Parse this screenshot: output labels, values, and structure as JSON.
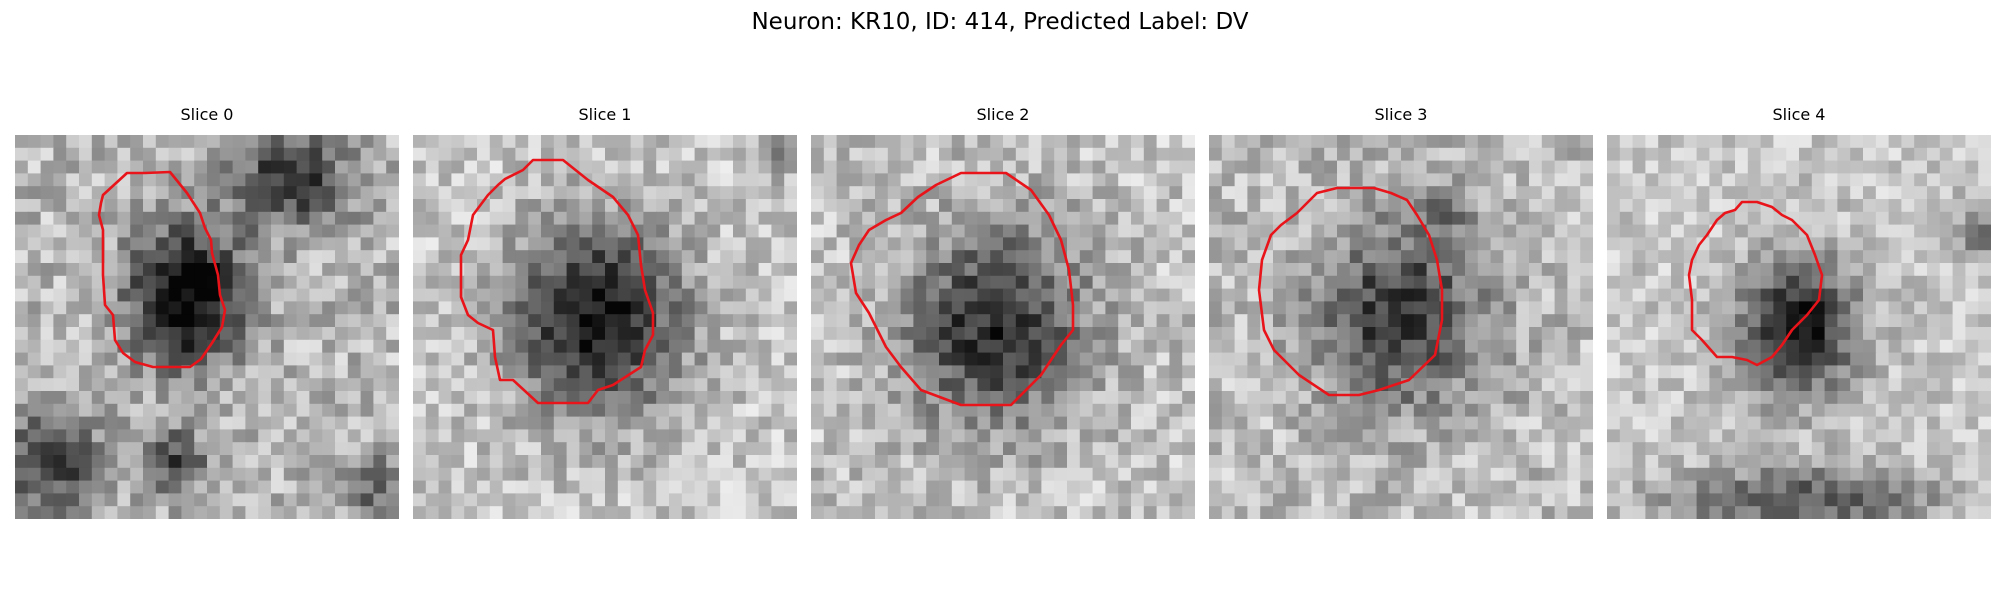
{
  "figure": {
    "title": "Neuron: KR10, ID: 414, Predicted Label: DV"
  },
  "colors": {
    "contour": "#e8141a",
    "background": "#ffffff"
  },
  "panels": [
    {
      "title": "Slice 0"
    },
    {
      "title": "Slice 1"
    },
    {
      "title": "Slice 2"
    },
    {
      "title": "Slice 3"
    },
    {
      "title": "Slice 4"
    }
  ]
}
